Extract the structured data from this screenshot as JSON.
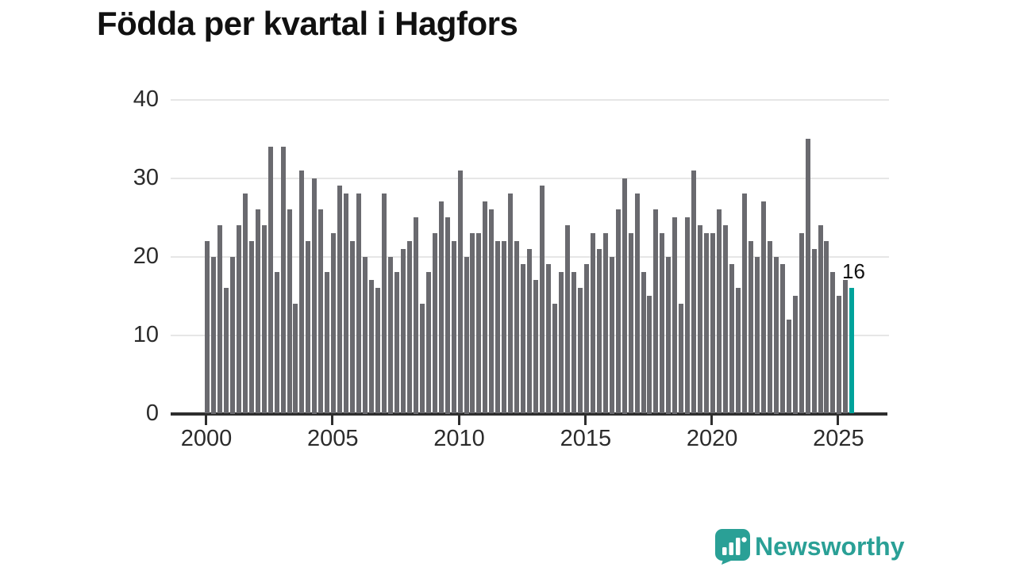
{
  "title": "Födda per kvartal i Hagfors",
  "annotation": {
    "label": "16"
  },
  "branding": {
    "name": "Newsworthy"
  },
  "colors": {
    "bar": "#6a6a6f",
    "highlight": "#00a39b",
    "axis": "#2e2e2e",
    "grid": "#e6e6e6",
    "brand": "#2aa096",
    "title_text": "#111111",
    "tick_text": "#2b2b2b"
  },
  "chart_data": {
    "type": "bar",
    "title": "Födda per kvartal i Hagfors",
    "xlabel": "",
    "ylabel": "",
    "ylim": [
      0,
      40
    ],
    "yticks": [
      0,
      10,
      20,
      30,
      40
    ],
    "xticks": [
      2000,
      2005,
      2010,
      2015,
      2020,
      2025
    ],
    "grid": true,
    "legend": "none",
    "highlight": {
      "index": 102,
      "quarter": "2025 Q3",
      "value": 16,
      "label": "16"
    },
    "categories": [
      "2000 Q1",
      "2000 Q2",
      "2000 Q3",
      "2000 Q4",
      "2001 Q1",
      "2001 Q2",
      "2001 Q3",
      "2001 Q4",
      "2002 Q1",
      "2002 Q2",
      "2002 Q3",
      "2002 Q4",
      "2003 Q1",
      "2003 Q2",
      "2003 Q3",
      "2003 Q4",
      "2004 Q1",
      "2004 Q2",
      "2004 Q3",
      "2004 Q4",
      "2005 Q1",
      "2005 Q2",
      "2005 Q3",
      "2005 Q4",
      "2006 Q1",
      "2006 Q2",
      "2006 Q3",
      "2006 Q4",
      "2007 Q1",
      "2007 Q2",
      "2007 Q3",
      "2007 Q4",
      "2008 Q1",
      "2008 Q2",
      "2008 Q3",
      "2008 Q4",
      "2009 Q1",
      "2009 Q2",
      "2009 Q3",
      "2009 Q4",
      "2010 Q1",
      "2010 Q2",
      "2010 Q3",
      "2010 Q4",
      "2011 Q1",
      "2011 Q2",
      "2011 Q3",
      "2011 Q4",
      "2012 Q1",
      "2012 Q2",
      "2012 Q3",
      "2012 Q4",
      "2013 Q1",
      "2013 Q2",
      "2013 Q3",
      "2013 Q4",
      "2014 Q1",
      "2014 Q2",
      "2014 Q3",
      "2014 Q4",
      "2015 Q1",
      "2015 Q2",
      "2015 Q3",
      "2015 Q4",
      "2016 Q1",
      "2016 Q2",
      "2016 Q3",
      "2016 Q4",
      "2017 Q1",
      "2017 Q2",
      "2017 Q3",
      "2017 Q4",
      "2018 Q1",
      "2018 Q2",
      "2018 Q3",
      "2018 Q4",
      "2019 Q1",
      "2019 Q2",
      "2019 Q3",
      "2019 Q4",
      "2020 Q1",
      "2020 Q2",
      "2020 Q3",
      "2020 Q4",
      "2021 Q1",
      "2021 Q2",
      "2021 Q3",
      "2021 Q4",
      "2022 Q1",
      "2022 Q2",
      "2022 Q3",
      "2022 Q4",
      "2023 Q1",
      "2023 Q2",
      "2023 Q3",
      "2023 Q4",
      "2024 Q1",
      "2024 Q2",
      "2024 Q3",
      "2024 Q4",
      "2025 Q1",
      "2025 Q2",
      "2025 Q3"
    ],
    "values": [
      22,
      20,
      24,
      16,
      20,
      24,
      28,
      22,
      26,
      24,
      34,
      18,
      34,
      26,
      14,
      31,
      22,
      30,
      26,
      18,
      23,
      29,
      28,
      22,
      28,
      20,
      17,
      16,
      28,
      20,
      18,
      21,
      22,
      25,
      14,
      18,
      23,
      27,
      25,
      22,
      31,
      20,
      23,
      23,
      27,
      26,
      22,
      22,
      28,
      22,
      19,
      21,
      17,
      29,
      19,
      14,
      18,
      24,
      18,
      16,
      19,
      23,
      21,
      23,
      20,
      26,
      30,
      23,
      28,
      18,
      15,
      26,
      23,
      20,
      25,
      14,
      25,
      31,
      24,
      23,
      23,
      26,
      24,
      19,
      16,
      28,
      22,
      20,
      27,
      22,
      20,
      19,
      12,
      15,
      23,
      35,
      21,
      24,
      22,
      18,
      15,
      17,
      16
    ]
  }
}
